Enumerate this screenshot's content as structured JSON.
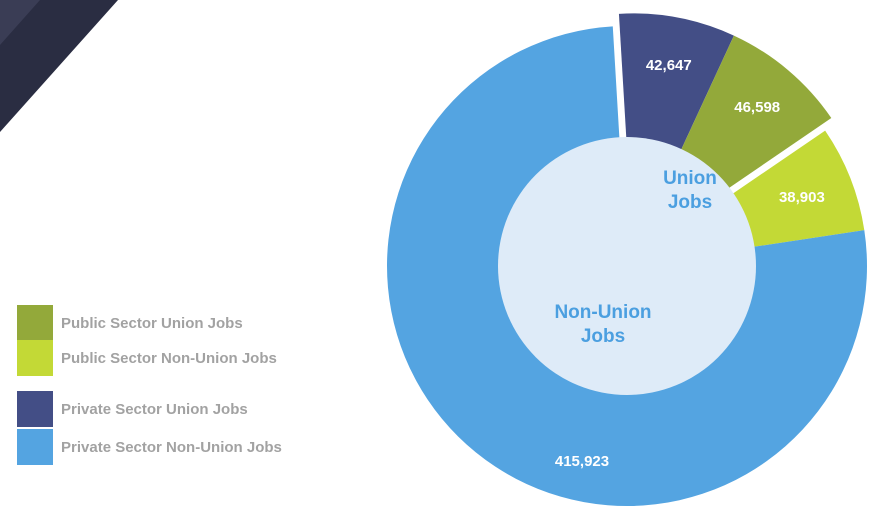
{
  "chart_data": {
    "type": "pie",
    "groups": [
      {
        "label_lines": [
          "Union",
          "Jobs"
        ],
        "exploded": true
      },
      {
        "label_lines": [
          "Non-Union",
          "Jobs"
        ],
        "exploded": false
      }
    ],
    "slices": [
      {
        "label": "Private Sector Union Jobs",
        "value": 42647,
        "display": "42,647",
        "color": "#434e86",
        "group": 0
      },
      {
        "label": "Public Sector Union Jobs",
        "value": 46598,
        "display": "46,598",
        "color": "#93a93a",
        "group": 0
      },
      {
        "label": "Public Sector Non-Union Jobs",
        "value": 38903,
        "display": "38,903",
        "color": "#c3d936",
        "group": 1
      },
      {
        "label": "Private Sector Non-Union Jobs",
        "value": 415923,
        "display": "415,923",
        "color": "#54a4e1",
        "group": 1
      }
    ],
    "legend": [
      {
        "label": "Public Sector Union Jobs",
        "color": "#93a93a"
      },
      {
        "label": "Public Sector Non-Union Jobs",
        "color": "#c3d936"
      },
      {
        "label": "Private Sector Union Jobs",
        "color": "#434e86"
      },
      {
        "label": "Private Sector Non-Union Jobs",
        "color": "#54a4e1"
      }
    ],
    "legend_placement": "left",
    "center_fill": "#deebf8",
    "center_text_color": "#4b9fe0"
  }
}
